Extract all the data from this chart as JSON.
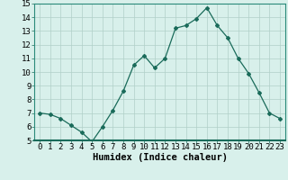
{
  "x": [
    0,
    1,
    2,
    3,
    4,
    5,
    6,
    7,
    8,
    9,
    10,
    11,
    12,
    13,
    14,
    15,
    16,
    17,
    18,
    19,
    20,
    21,
    22,
    23
  ],
  "y": [
    7.0,
    6.9,
    6.6,
    6.1,
    5.6,
    4.9,
    6.0,
    7.2,
    8.6,
    10.5,
    11.2,
    10.3,
    11.0,
    13.2,
    13.4,
    13.9,
    14.7,
    13.4,
    12.5,
    11.0,
    9.9,
    8.5,
    7.0,
    6.6
  ],
  "line_color": "#1a6b5a",
  "marker": "D",
  "marker_size": 2,
  "bg_color": "#d8f0eb",
  "grid_color": "#b0d0c8",
  "xlabel": "Humidex (Indice chaleur)",
  "xlabel_fontsize": 7.5,
  "tick_fontsize": 6.5,
  "ylim": [
    5,
    15
  ],
  "xlim": [
    -0.5,
    23.5
  ],
  "yticks": [
    5,
    6,
    7,
    8,
    9,
    10,
    11,
    12,
    13,
    14,
    15
  ],
  "xticks": [
    0,
    1,
    2,
    3,
    4,
    5,
    6,
    7,
    8,
    9,
    10,
    11,
    12,
    13,
    14,
    15,
    16,
    17,
    18,
    19,
    20,
    21,
    22,
    23
  ],
  "xtick_labels": [
    "0",
    "1",
    "2",
    "3",
    "4",
    "5",
    "6",
    "7",
    "8",
    "9",
    "10",
    "11",
    "12",
    "13",
    "14",
    "15",
    "16",
    "17",
    "18",
    "19",
    "20",
    "21",
    "22",
    "23"
  ]
}
